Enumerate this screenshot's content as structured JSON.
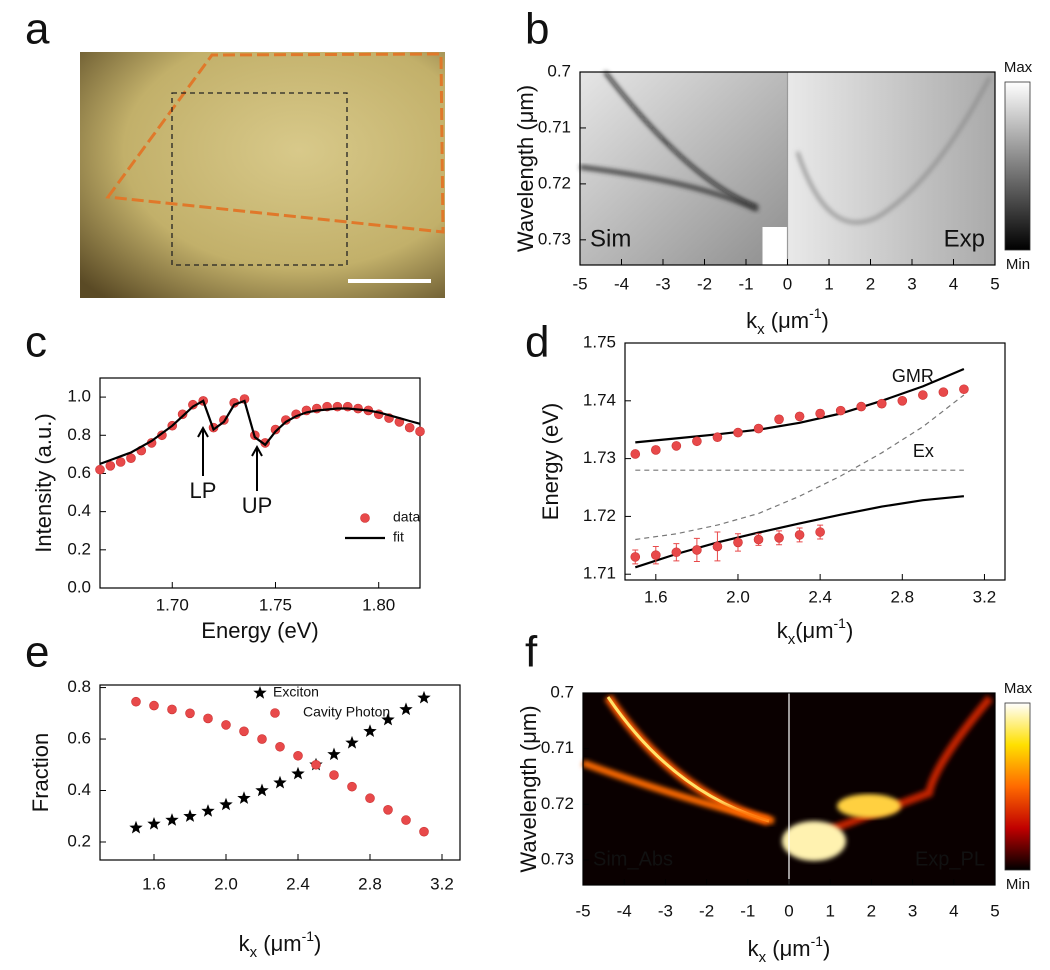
{
  "chart_data": [
    {
      "type": "image",
      "panel": "a"
    },
    {
      "type": "heatmap",
      "panel": "b",
      "ylabel": "Wavelength (μm)",
      "xlabel": [
        {
          "text": "k"
        },
        {
          "text": "x",
          "sub": true
        },
        {
          "text": " (μm"
        },
        {
          "text": "-1",
          "sup": true
        },
        {
          "text": ")"
        }
      ],
      "xlim": [
        -5,
        5
      ],
      "xticks": [
        -5,
        -4,
        -3,
        -2,
        -1,
        0,
        1,
        2,
        3,
        4,
        5
      ],
      "ylim": [
        0.7,
        0.7345
      ],
      "yticks": [
        0.7,
        0.71,
        0.72,
        0.73
      ],
      "y_inverted": true,
      "colormap": "gray",
      "annotations": [
        "Sim",
        "Exp"
      ],
      "colorbar": {
        "max": "Max",
        "min": "Min",
        "colors": [
          "#000000",
          "#7f7f7f",
          "#ffffff"
        ]
      }
    },
    {
      "type": "scatter",
      "panel": "c",
      "xlabel": [
        {
          "text": "Energy (eV)"
        }
      ],
      "ylabel": "Intensity (a.u.)",
      "xlim": [
        1.665,
        1.82
      ],
      "xticks": [
        {
          "value": 1.7,
          "label": "1.70"
        },
        1.75,
        {
          "value": 1.8,
          "label": "1.80"
        }
      ],
      "ylim": [
        0,
        1.1
      ],
      "yticks": [
        {
          "value": 0,
          "label": "0.0"
        },
        0.2,
        0.4,
        0.6,
        0.8,
        {
          "value": 1,
          "label": "1.0"
        }
      ],
      "legend": "lower right",
      "annotations": [
        "LP",
        "UP"
      ],
      "series": [
        {
          "name": "data",
          "mode": "markers",
          "marker": "circle",
          "color": "#e8494a",
          "x": [
            1.665,
            1.67,
            1.675,
            1.68,
            1.685,
            1.69,
            1.695,
            1.7,
            1.705,
            1.71,
            1.715,
            1.72,
            1.725,
            1.73,
            1.735,
            1.74,
            1.745,
            1.75,
            1.755,
            1.76,
            1.765,
            1.77,
            1.775,
            1.78,
            1.785,
            1.79,
            1.795,
            1.8,
            1.805,
            1.81,
            1.815,
            1.82
          ],
          "values": [
            0.62,
            0.64,
            0.66,
            0.68,
            0.72,
            0.76,
            0.8,
            0.85,
            0.91,
            0.96,
            0.98,
            0.84,
            0.88,
            0.97,
            0.99,
            0.8,
            0.76,
            0.83,
            0.88,
            0.91,
            0.93,
            0.94,
            0.95,
            0.95,
            0.95,
            0.94,
            0.93,
            0.91,
            0.89,
            0.87,
            0.84,
            0.82
          ]
        },
        {
          "name": "fit",
          "mode": "line",
          "color": "#000000",
          "x": [
            1.665,
            1.67,
            1.675,
            1.68,
            1.685,
            1.69,
            1.695,
            1.7,
            1.705,
            1.71,
            1.715,
            1.72,
            1.725,
            1.73,
            1.735,
            1.74,
            1.745,
            1.75,
            1.755,
            1.76,
            1.765,
            1.77,
            1.775,
            1.78,
            1.785,
            1.79,
            1.795,
            1.8,
            1.805,
            1.81,
            1.815,
            1.82
          ],
          "values": [
            0.65,
            0.67,
            0.69,
            0.71,
            0.74,
            0.77,
            0.81,
            0.85,
            0.9,
            0.95,
            0.98,
            0.83,
            0.87,
            0.96,
            0.98,
            0.79,
            0.75,
            0.82,
            0.87,
            0.9,
            0.92,
            0.93,
            0.935,
            0.94,
            0.94,
            0.935,
            0.93,
            0.92,
            0.905,
            0.89,
            0.875,
            0.86
          ]
        }
      ]
    },
    {
      "type": "scatter",
      "panel": "d",
      "xlabel": [
        {
          "text": "k"
        },
        {
          "text": "x",
          "sub": true
        },
        {
          "text": "(μm"
        },
        {
          "text": "-1",
          "sup": true
        },
        {
          "text": ")"
        }
      ],
      "ylabel": "Energy (eV)",
      "xlim": [
        1.45,
        3.3
      ],
      "xticks": [
        1.6,
        {
          "value": 2,
          "label": "2.0"
        },
        2.4,
        2.8,
        3.2
      ],
      "ylim": [
        1.709,
        1.75
      ],
      "yticks": [
        1.71,
        1.72,
        1.73,
        1.74,
        1.75
      ],
      "series": [
        {
          "mode": "line",
          "color": "#000000",
          "x": [
            1.5,
            1.7,
            1.9,
            2.1,
            2.3,
            2.5,
            2.7,
            2.9,
            3.1
          ],
          "values": [
            1.7328,
            1.7335,
            1.7342,
            1.735,
            1.7362,
            1.7378,
            1.74,
            1.7425,
            1.7455
          ]
        },
        {
          "mode": "line",
          "color": "#000000",
          "x": [
            1.5,
            1.7,
            1.9,
            2.1,
            2.3,
            2.5,
            2.7,
            2.9,
            3.1
          ],
          "values": [
            1.7112,
            1.7135,
            1.7155,
            1.7172,
            1.7188,
            1.7203,
            1.7217,
            1.7228,
            1.7235
          ]
        },
        {
          "label": "GMR",
          "mode": "line",
          "dash": true,
          "color": "#777777",
          "x": [
            1.5,
            1.7,
            1.9,
            2.1,
            2.3,
            2.5,
            2.7,
            2.9,
            3.1
          ],
          "values": [
            1.716,
            1.717,
            1.7185,
            1.7205,
            1.7235,
            1.727,
            1.731,
            1.7355,
            1.741
          ]
        },
        {
          "label": "Ex",
          "mode": "line",
          "dash": true,
          "color": "#777777",
          "x": [
            1.5,
            3.1
          ],
          "values": [
            1.728,
            1.728
          ]
        },
        {
          "mode": "markers",
          "marker": "circle",
          "color": "#e8494a",
          "x": [
            1.5,
            1.6,
            1.7,
            1.8,
            1.9,
            2.0,
            2.1,
            2.2,
            2.3,
            2.4,
            2.5,
            2.6,
            2.7,
            2.8,
            2.9,
            3.0,
            3.1
          ],
          "values": [
            1.7308,
            1.7315,
            1.7322,
            1.733,
            1.7337,
            1.7345,
            1.7352,
            1.7368,
            1.7373,
            1.7378,
            1.7383,
            1.739,
            1.7395,
            1.74,
            1.741,
            1.7415,
            1.742
          ],
          "errors": [
            0.0004,
            0.0004,
            0.0004,
            0.0005,
            0.0005,
            0.0005,
            0.0004,
            0.0006,
            0.0006,
            0.0006,
            0.0005,
            0.0005,
            0.0004,
            0.0004,
            0.0004,
            0.0004,
            0.0004
          ]
        },
        {
          "mode": "markers",
          "marker": "circle",
          "color": "#e8494a",
          "x": [
            1.5,
            1.6,
            1.7,
            1.8,
            1.9,
            2.0,
            2.1,
            2.2,
            2.3,
            2.4
          ],
          "values": [
            1.713,
            1.7133,
            1.7138,
            1.7142,
            1.7148,
            1.7155,
            1.716,
            1.7163,
            1.7168,
            1.7173
          ],
          "errors": [
            0.0012,
            0.0015,
            0.0015,
            0.002,
            0.0025,
            0.0015,
            0.001,
            0.0012,
            0.0012,
            0.0012
          ]
        }
      ]
    },
    {
      "type": "scatter",
      "panel": "e",
      "xlabel": [
        {
          "text": "k"
        },
        {
          "text": "x",
          "sub": true
        },
        {
          "text": " (μm"
        },
        {
          "text": "-1",
          "sup": true
        },
        {
          "text": ")"
        }
      ],
      "ylabel": "Fraction",
      "xlim": [
        1.3,
        3.3
      ],
      "xticks": [
        1.6,
        {
          "value": 2,
          "label": "2.0"
        },
        2.4,
        2.8,
        3.2
      ],
      "ylim": [
        0.13,
        0.81
      ],
      "yticks": [
        0.2,
        0.4,
        0.6,
        0.8
      ],
      "legend": "upper right",
      "series": [
        {
          "name": "Exciton",
          "mode": "markers",
          "marker": "star",
          "color": "#000000",
          "x": [
            1.5,
            1.6,
            1.7,
            1.8,
            1.9,
            2.0,
            2.1,
            2.2,
            2.3,
            2.4,
            2.5,
            2.6,
            2.7,
            2.8,
            2.9,
            3.0,
            3.1
          ],
          "values": [
            0.255,
            0.27,
            0.285,
            0.3,
            0.32,
            0.345,
            0.37,
            0.4,
            0.43,
            0.465,
            0.5,
            0.54,
            0.585,
            0.63,
            0.675,
            0.715,
            0.76
          ]
        },
        {
          "name": "Cavity Photon",
          "mode": "markers",
          "marker": "circle",
          "color": "#e8494a",
          "x": [
            1.5,
            1.6,
            1.7,
            1.8,
            1.9,
            2.0,
            2.1,
            2.2,
            2.3,
            2.4,
            2.5,
            2.6,
            2.7,
            2.8,
            2.9,
            3.0,
            3.1
          ],
          "values": [
            0.745,
            0.73,
            0.715,
            0.7,
            0.68,
            0.655,
            0.63,
            0.6,
            0.57,
            0.535,
            0.5,
            0.46,
            0.415,
            0.37,
            0.325,
            0.285,
            0.24
          ]
        }
      ]
    },
    {
      "type": "heatmap",
      "panel": "f",
      "ylabel": "Wavelength (μm)",
      "xlabel": [
        {
          "text": "k"
        },
        {
          "text": "x",
          "sub": true
        },
        {
          "text": " (μm"
        },
        {
          "text": "-1",
          "sup": true
        },
        {
          "text": ")"
        }
      ],
      "xlim": [
        -5,
        5
      ],
      "xticks": [
        -5,
        -4,
        -3,
        -2,
        -1,
        0,
        1,
        2,
        3,
        4,
        5
      ],
      "ylim": [
        0.7,
        0.7345
      ],
      "yticks": [
        0.7,
        0.71,
        0.72,
        0.73
      ],
      "y_inverted": true,
      "colormap": "hot",
      "annotations": [
        "Sim_Abs",
        "Exp_PL"
      ],
      "colorbar": {
        "max": "Max",
        "min": "Min",
        "colors": [
          "#000000",
          "#c00000",
          "#ff6a00",
          "#ffe000",
          "#ffffff"
        ]
      }
    }
  ]
}
